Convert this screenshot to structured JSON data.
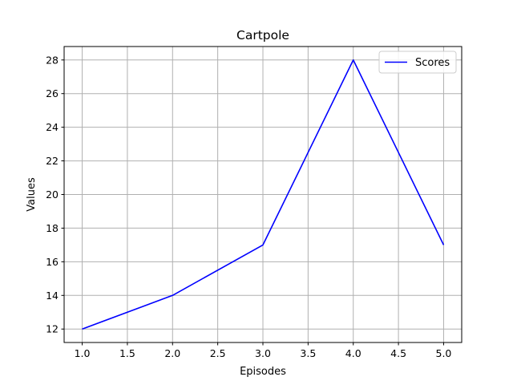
{
  "chart_data": {
    "type": "line",
    "title": "Cartpole",
    "xlabel": "Episodes",
    "ylabel": "Values",
    "xlim": [
      0.8,
      5.2
    ],
    "ylim": [
      11.2,
      28.8
    ],
    "xticks": [
      1.0,
      1.5,
      2.0,
      2.5,
      3.0,
      3.5,
      4.0,
      4.5,
      5.0
    ],
    "xtick_labels": [
      "1.0",
      "1.5",
      "2.0",
      "2.5",
      "3.0",
      "3.5",
      "4.0",
      "4.5",
      "5.0"
    ],
    "yticks": [
      12,
      14,
      16,
      18,
      20,
      22,
      24,
      26,
      28
    ],
    "ytick_labels": [
      "12",
      "14",
      "16",
      "18",
      "20",
      "22",
      "24",
      "26",
      "28"
    ],
    "grid": true,
    "legend_position": "top-right",
    "x": [
      1,
      2,
      3,
      4,
      5
    ],
    "series": [
      {
        "name": "Scores",
        "color": "#0000ff",
        "values": [
          12,
          14,
          17,
          28,
          17
        ]
      }
    ]
  }
}
